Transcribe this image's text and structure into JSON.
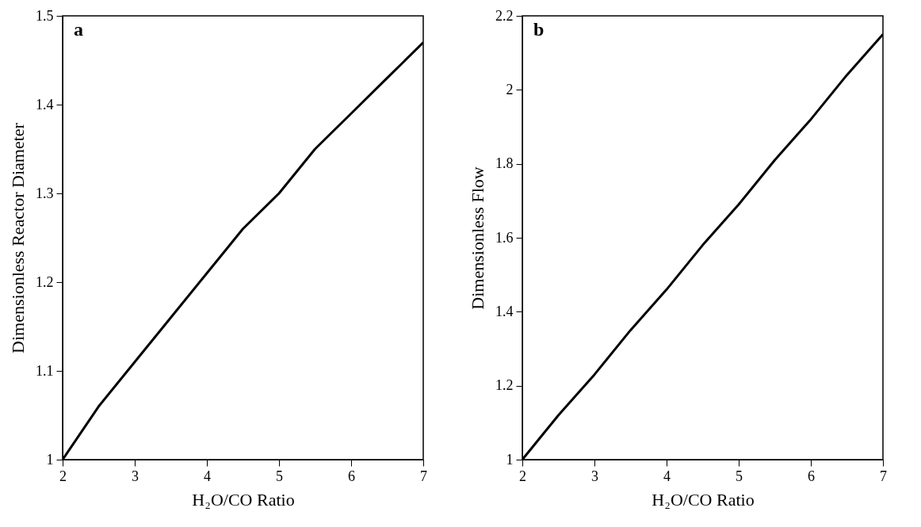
{
  "chart_data": [
    {
      "type": "line",
      "annotations": [
        "a"
      ],
      "xlabel": "H₂O/CO Ratio",
      "ylabel": "Dimensionless Reactor Diameter",
      "x": [
        2,
        2.5,
        3,
        3.5,
        4,
        4.5,
        5,
        5.5,
        6,
        6.5,
        7
      ],
      "series": [
        {
          "color": "#000000",
          "values": [
            1.0,
            1.06,
            1.11,
            1.16,
            1.21,
            1.26,
            1.3,
            1.35,
            1.39,
            1.43,
            1.47
          ]
        }
      ],
      "xlim": [
        2,
        7
      ],
      "xticks": [
        2,
        3,
        4,
        5,
        6,
        7
      ],
      "ylim": [
        1,
        1.5
      ],
      "yticks": [
        1,
        1.1,
        1.2,
        1.3,
        1.4,
        1.5
      ],
      "grid": false
    },
    {
      "type": "line",
      "annotations": [
        "b"
      ],
      "xlabel": "H₂O/CO Ratio",
      "ylabel": "Dimensionless Flow",
      "x": [
        2,
        2.5,
        3,
        3.5,
        4,
        4.5,
        5,
        5.5,
        6,
        6.5,
        7
      ],
      "series": [
        {
          "color": "#000000",
          "values": [
            1.0,
            1.12,
            1.23,
            1.35,
            1.46,
            1.58,
            1.69,
            1.81,
            1.92,
            2.04,
            2.15
          ]
        }
      ],
      "xlim": [
        2,
        7
      ],
      "xticks": [
        2,
        3,
        4,
        5,
        6,
        7
      ],
      "ylim": [
        1,
        2.2
      ],
      "yticks": [
        1,
        1.2,
        1.4,
        1.6,
        1.8,
        2,
        2.2
      ],
      "grid": false
    }
  ]
}
